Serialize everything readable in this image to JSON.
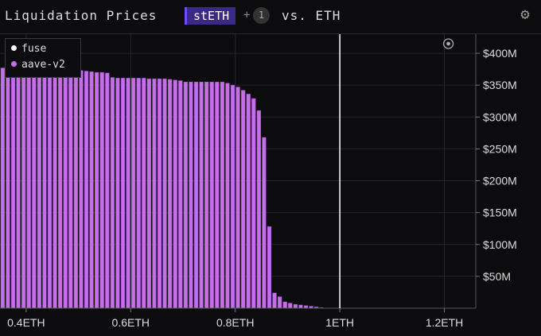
{
  "header": {
    "title": "Liquidation Prices",
    "asset": "stETH",
    "plus": "+",
    "count": "1",
    "vs": "vs. ETH",
    "settings_icon": "gear-icon"
  },
  "colors": {
    "bar": "#c46ee8",
    "bar_outline": "#9c4fc4",
    "current_price_line": "#ffffff",
    "grid": "#262626",
    "fuse": "#ffffff",
    "aave_v2": "#c46ee8"
  },
  "legend": {
    "items": [
      {
        "label": "fuse",
        "color": "#ffffff"
      },
      {
        "label": "aave-v2",
        "color": "#c46ee8"
      }
    ]
  },
  "chart_data": {
    "type": "bar",
    "title": "",
    "xlabel": "",
    "ylabel": "",
    "xlim": [
      0.35,
      1.26
    ],
    "ylim": [
      0,
      430
    ],
    "x_ticks": [
      0.4,
      0.6,
      0.8,
      1.0,
      1.2
    ],
    "x_tick_labels": [
      "0.4ETH",
      "0.6ETH",
      "0.8ETH",
      "1ETH",
      "1.2ETH"
    ],
    "y_ticks": [
      50,
      100,
      150,
      200,
      250,
      300,
      350,
      400
    ],
    "y_tick_labels": [
      "$50M",
      "$100M",
      "$150M",
      "$200M",
      "$250M",
      "$300M",
      "$350M",
      "$400M"
    ],
    "current_price": 1.0,
    "grid": true,
    "legend_position": "top-left",
    "series": [
      {
        "name": "aave-v2",
        "x": [
          0.35,
          0.36,
          0.37,
          0.38,
          0.39,
          0.4,
          0.41,
          0.42,
          0.43,
          0.44,
          0.45,
          0.46,
          0.47,
          0.48,
          0.49,
          0.5,
          0.51,
          0.52,
          0.53,
          0.54,
          0.55,
          0.56,
          0.57,
          0.58,
          0.59,
          0.6,
          0.61,
          0.62,
          0.63,
          0.64,
          0.65,
          0.66,
          0.67,
          0.68,
          0.69,
          0.7,
          0.71,
          0.72,
          0.73,
          0.74,
          0.75,
          0.76,
          0.77,
          0.78,
          0.79,
          0.8,
          0.81,
          0.82,
          0.83,
          0.84,
          0.85,
          0.86,
          0.87,
          0.88,
          0.89,
          0.9,
          0.91,
          0.92,
          0.93,
          0.94,
          0.95,
          0.96
        ],
        "values": [
          377,
          376,
          375,
          375,
          375,
          375,
          375,
          375,
          375,
          375,
          375,
          375,
          374,
          374,
          374,
          373,
          372,
          371,
          370,
          370,
          369,
          362,
          361,
          361,
          361,
          361,
          361,
          361,
          360,
          360,
          360,
          360,
          359,
          358,
          357,
          355,
          355,
          355,
          355,
          355,
          355,
          355,
          355,
          353,
          350,
          347,
          342,
          336,
          329,
          310,
          268,
          128,
          24,
          18,
          10,
          8,
          6,
          5,
          4,
          3,
          2,
          1
        ]
      },
      {
        "name": "fuse",
        "x": [],
        "values": []
      }
    ]
  }
}
